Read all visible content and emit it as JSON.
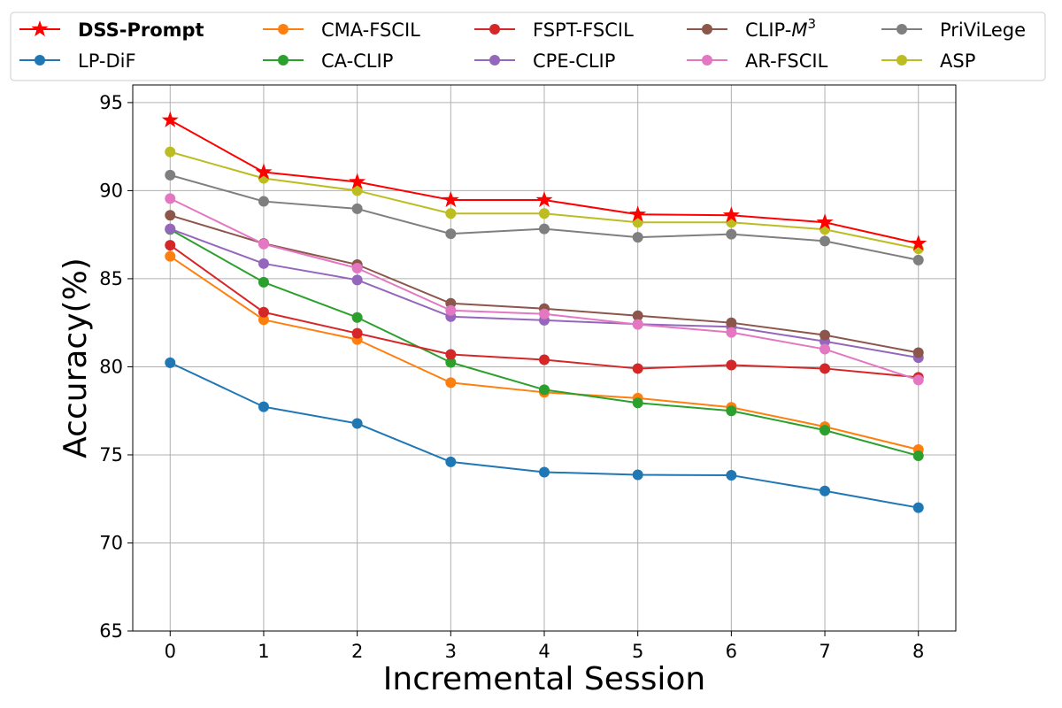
{
  "chart_data": {
    "type": "line",
    "title": "",
    "xlabel": "Incremental Session",
    "ylabel": "Accuracy(%)",
    "x": [
      0,
      1,
      2,
      3,
      4,
      5,
      6,
      7,
      8
    ],
    "xlim": [
      -0.4,
      8.4
    ],
    "ylim": [
      65,
      96
    ],
    "yticks": [
      65,
      70,
      75,
      80,
      85,
      90,
      95
    ],
    "grid": true,
    "legend_position": "top",
    "series": [
      {
        "name": "DSS-Prompt",
        "label_main": "DSS-Prompt",
        "label_sup": "",
        "color": "#ff0000",
        "marker": "star",
        "bold": true,
        "values": [
          94.0,
          91.05,
          90.5,
          89.47,
          89.47,
          88.65,
          88.6,
          88.2,
          87.0
        ]
      },
      {
        "name": "LP-DiF",
        "label_main": "LP-DiF",
        "label_sup": "",
        "color": "#1f77b4",
        "marker": "circle",
        "bold": false,
        "values": [
          80.23,
          77.73,
          76.78,
          74.6,
          74.02,
          73.87,
          73.84,
          72.95,
          72.0
        ]
      },
      {
        "name": "CMA-FSCIL",
        "label_main": "CMA-FSCIL",
        "label_sup": "",
        "color": "#ff7f0e",
        "marker": "circle",
        "bold": false,
        "values": [
          86.27,
          82.67,
          81.55,
          79.1,
          78.55,
          78.22,
          77.7,
          76.6,
          75.3
        ]
      },
      {
        "name": "CA-CLIP",
        "label_main": "CA-CLIP",
        "label_sup": "",
        "color": "#2ca02c",
        "marker": "circle",
        "bold": false,
        "values": [
          87.8,
          84.8,
          82.8,
          80.25,
          78.7,
          77.95,
          77.5,
          76.4,
          74.95
        ]
      },
      {
        "name": "FSPT-FSCIL",
        "label_main": "FSPT-FSCIL",
        "label_sup": "",
        "color": "#d62728",
        "marker": "circle",
        "bold": false,
        "values": [
          86.9,
          83.1,
          81.9,
          80.7,
          80.4,
          79.9,
          80.1,
          79.9,
          79.4
        ]
      },
      {
        "name": "CPE-CLIP",
        "label_main": "CPE-CLIP",
        "label_sup": "",
        "color": "#9467bd",
        "marker": "circle",
        "bold": false,
        "values": [
          87.83,
          85.86,
          84.93,
          82.85,
          82.64,
          82.42,
          82.27,
          81.44,
          80.52
        ]
      },
      {
        "name": "CLIP-M3",
        "label_main": "CLIP-",
        "label_sup": "3",
        "label_italic": "M",
        "color": "#8c564b",
        "marker": "circle",
        "bold": false,
        "values": [
          88.6,
          87.0,
          85.8,
          83.6,
          83.3,
          82.9,
          82.5,
          81.8,
          80.8
        ]
      },
      {
        "name": "AR-FSCIL",
        "label_main": "AR-FSCIL",
        "label_sup": "",
        "color": "#e377c2",
        "marker": "circle",
        "bold": false,
        "values": [
          89.55,
          86.97,
          85.6,
          83.2,
          83.0,
          82.4,
          81.95,
          81.0,
          79.25
        ]
      },
      {
        "name": "PriViLege",
        "label_main": "PriViLege",
        "label_sup": "",
        "color": "#7f7f7f",
        "marker": "circle",
        "bold": false,
        "values": [
          90.88,
          89.39,
          88.97,
          87.55,
          87.83,
          87.35,
          87.53,
          87.14,
          86.06
        ]
      },
      {
        "name": "ASP",
        "label_main": "ASP",
        "label_sup": "",
        "color": "#bcbd22",
        "marker": "circle",
        "bold": false,
        "values": [
          92.2,
          90.7,
          90.0,
          88.7,
          88.7,
          88.2,
          88.2,
          87.8,
          86.7
        ]
      }
    ]
  }
}
